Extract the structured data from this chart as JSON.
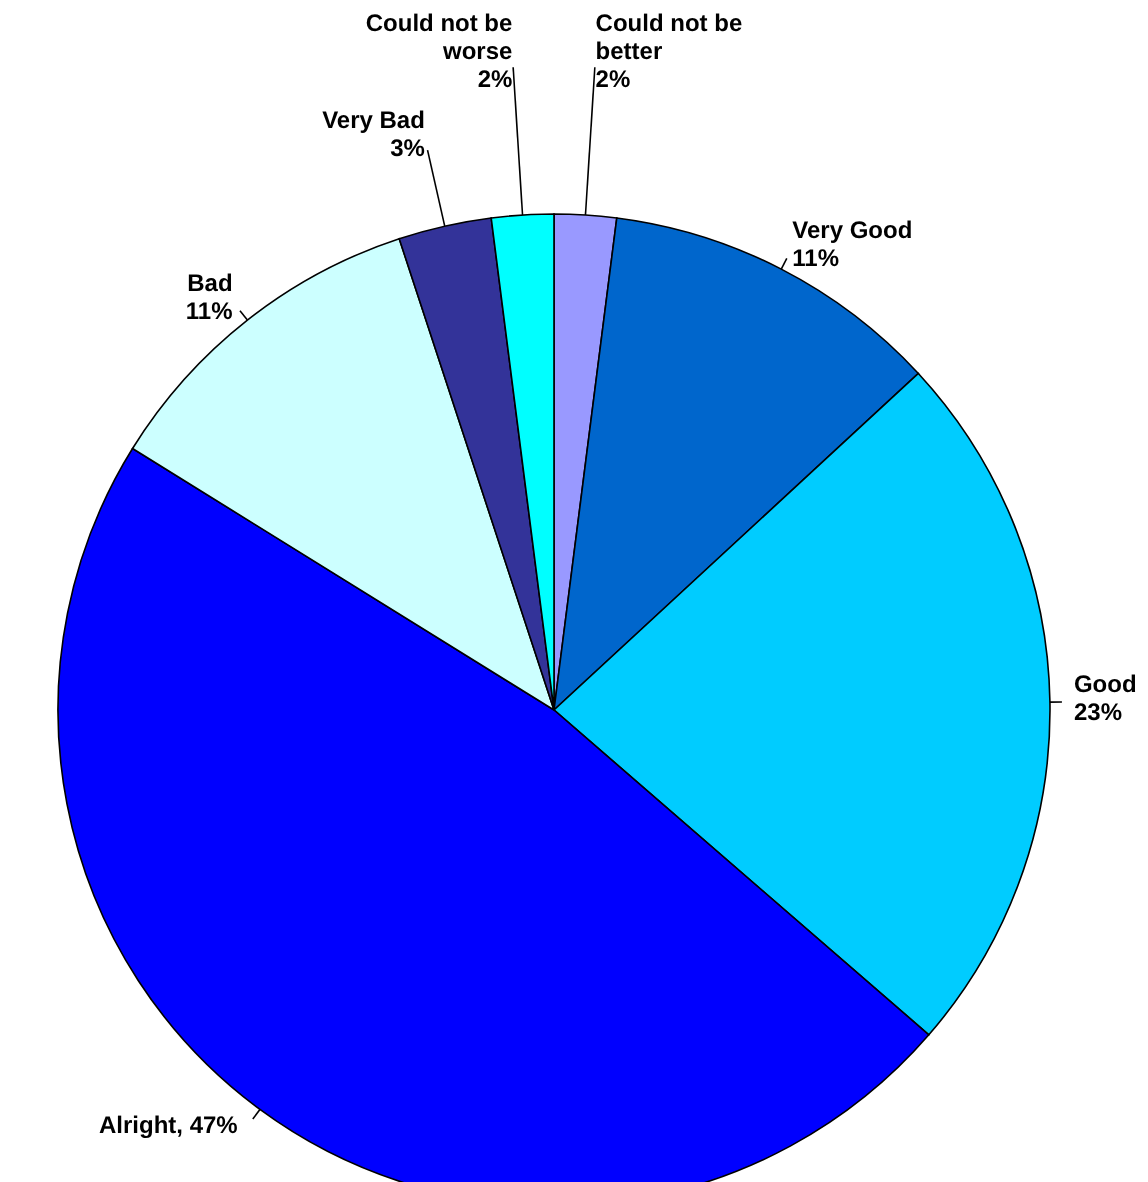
{
  "chart_data": {
    "type": "pie",
    "categories": [
      "Could not be better",
      "Very Good",
      "Good",
      "Alright",
      "Bad",
      "Very Bad",
      "Could not be worse"
    ],
    "values": [
      2,
      11,
      23,
      47,
      11,
      3,
      2
    ],
    "colors": [
      "#9999ff",
      "#0066cc",
      "#00ccff",
      "#0000ff",
      "#ccffff",
      "#333399",
      "#00ffff"
    ],
    "value_labels": [
      "2%",
      "11%",
      "23%",
      "47%",
      "11%",
      "3%",
      "2%"
    ]
  }
}
